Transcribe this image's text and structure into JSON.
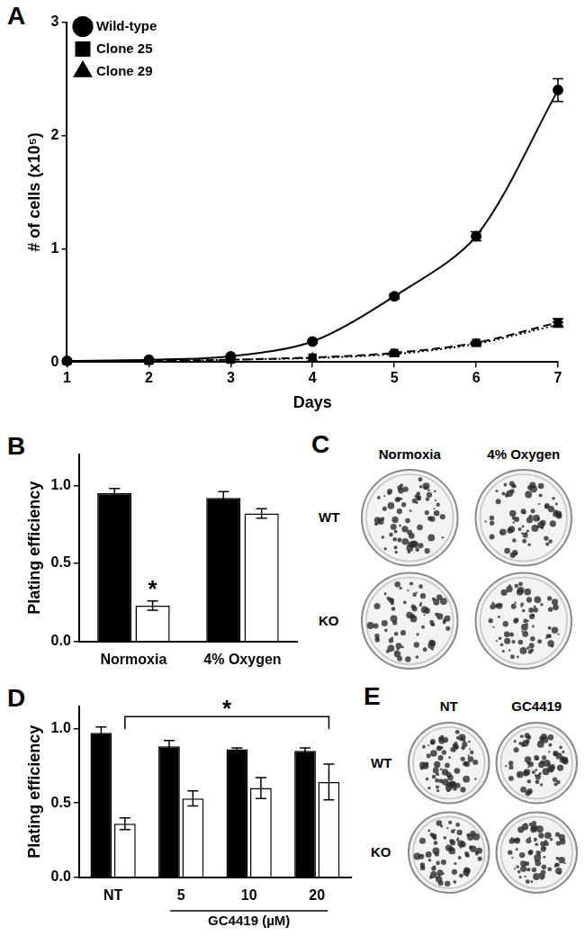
{
  "chart_data": [
    {
      "panel": "A",
      "type": "line",
      "xlabel": "Days",
      "ylabel": "# of cells (x10⁵)",
      "x": [
        1,
        2,
        3,
        4,
        5,
        6,
        7
      ],
      "xlim": [
        1,
        7
      ],
      "xticks": [
        1,
        2,
        3,
        4,
        5,
        6,
        7
      ],
      "ylim": [
        0,
        3
      ],
      "yticks": [
        0,
        1,
        2,
        3
      ],
      "grid": false,
      "legend": "upper left",
      "series": [
        {
          "name": "Wild-type",
          "color": "#000000",
          "marker": "circle",
          "line_style": "solid",
          "values": [
            0.01,
            0.02,
            0.05,
            0.18,
            0.58,
            1.11,
            2.4
          ],
          "errors": [
            0,
            0,
            0,
            0.01,
            0.02,
            0.04,
            0.1
          ]
        },
        {
          "name": "Clone 25",
          "color": "#000000",
          "marker": "square",
          "line_style": "dashed",
          "values": [
            0.005,
            0.01,
            0.02,
            0.04,
            0.08,
            0.17,
            0.35
          ],
          "errors": [
            0,
            0,
            0,
            0,
            0.01,
            0.01,
            0.03
          ]
        },
        {
          "name": "Clone 29",
          "color": "#000000",
          "marker": "triangle",
          "line_style": "dotted",
          "values": [
            0.005,
            0.01,
            0.02,
            0.035,
            0.07,
            0.16,
            0.33
          ],
          "errors": [
            0,
            0,
            0,
            0,
            0.01,
            0.01,
            0.02
          ]
        }
      ]
    },
    {
      "panel": "B",
      "type": "bar",
      "ylabel": "Plating efficiency",
      "categories": [
        "Normoxia",
        "4% Oxygen"
      ],
      "ylim": [
        0,
        1.2
      ],
      "yticks": [
        {
          "value": 0,
          "label": "0.0"
        },
        {
          "value": 0.5,
          "label": "0.5"
        },
        {
          "value": 1,
          "label": "1.0"
        }
      ],
      "grid": false,
      "series": [
        {
          "color": "#000000",
          "values": [
            0.95,
            0.92
          ],
          "errors": [
            0.03,
            0.04
          ]
        },
        {
          "color": "#ffffff",
          "values": [
            0.23,
            0.82
          ],
          "errors": [
            0.03,
            0.03
          ]
        }
      ],
      "annotations": [
        {
          "text": "*",
          "category": "Normoxia",
          "series": 1,
          "y": 0.33
        }
      ]
    },
    {
      "panel": "D",
      "type": "bar",
      "ylabel": "Plating efficiency",
      "categories": [
        "NT",
        "5",
        "10",
        "20"
      ],
      "ylim": [
        0,
        1.15
      ],
      "yticks": [
        {
          "value": 0,
          "label": "0.0"
        },
        {
          "value": 0.5,
          "label": "0.5"
        },
        {
          "value": 1,
          "label": "1.0"
        }
      ],
      "grid": false,
      "group_label": {
        "text": "GC4419 (µM)",
        "from": "5",
        "to": "20"
      },
      "series": [
        {
          "color": "#000000",
          "values": [
            0.97,
            0.88,
            0.86,
            0.85
          ],
          "errors": [
            0.04,
            0.04,
            0.01,
            0.02
          ]
        },
        {
          "color": "#ffffff",
          "values": [
            0.36,
            0.53,
            0.6,
            0.64
          ],
          "errors": [
            0.04,
            0.05,
            0.07,
            0.12
          ]
        }
      ],
      "annotations": [
        {
          "text": "*",
          "from": "NT",
          "to": "20",
          "series": 1,
          "y": 1.08
        }
      ]
    }
  ],
  "images": [
    {
      "panel": "C",
      "columns": [
        "Normoxia",
        "4% Oxygen"
      ],
      "rows": [
        "WT",
        "KO"
      ]
    },
    {
      "panel": "E",
      "columns": [
        "NT",
        "GC4419"
      ],
      "rows": [
        "WT",
        "KO"
      ]
    }
  ]
}
